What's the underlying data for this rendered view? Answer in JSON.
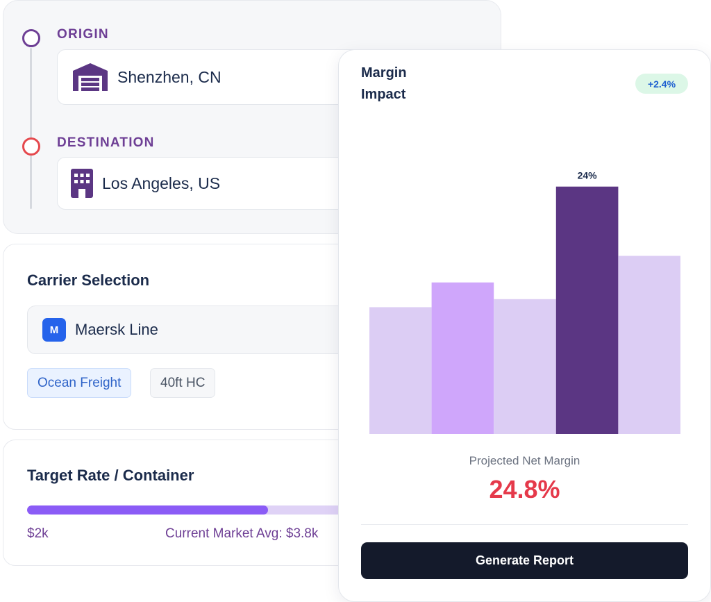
{
  "route": {
    "origin_label": "ORIGIN",
    "origin_value": "Shenzhen, CN",
    "destination_label": "DESTINATION",
    "destination_value": "Los Angeles, US",
    "icons": {
      "origin": "warehouse-icon",
      "destination": "building-icon"
    },
    "colors": {
      "origin_dot": "#6e3f95",
      "destination_dot": "#e5484d"
    }
  },
  "carrier": {
    "title": "Carrier Selection",
    "badge_letter": "M",
    "name": "Maersk Line",
    "tags": [
      "Ocean Freight",
      "40ft HC"
    ],
    "badge_color": "#2563eb"
  },
  "target_rate": {
    "title": "Target Rate / Container",
    "min_label": "$2k",
    "avg_label": "Current Market Avg: $3.8k",
    "fill_fraction": 0.62,
    "colors": {
      "fill": "#8b5cf6",
      "track": "#dfd2f6"
    }
  },
  "margin": {
    "title": "Margin Impact",
    "delta": "+2.4%",
    "projected_label": "Projected Net Margin",
    "projected_value": "24.8%",
    "button_label": "Generate Report"
  },
  "chart_data": {
    "type": "bar",
    "values": [
      20.5,
      24.5,
      21.8,
      40,
      28.8
    ],
    "ylim": [
      0,
      43
    ],
    "highlight_index": 3,
    "highlight_label": "24%",
    "colors": [
      "#dccdf4",
      "#cfa6fb",
      "#dccdf4",
      "#5b3683",
      "#dccdf4"
    ]
  }
}
